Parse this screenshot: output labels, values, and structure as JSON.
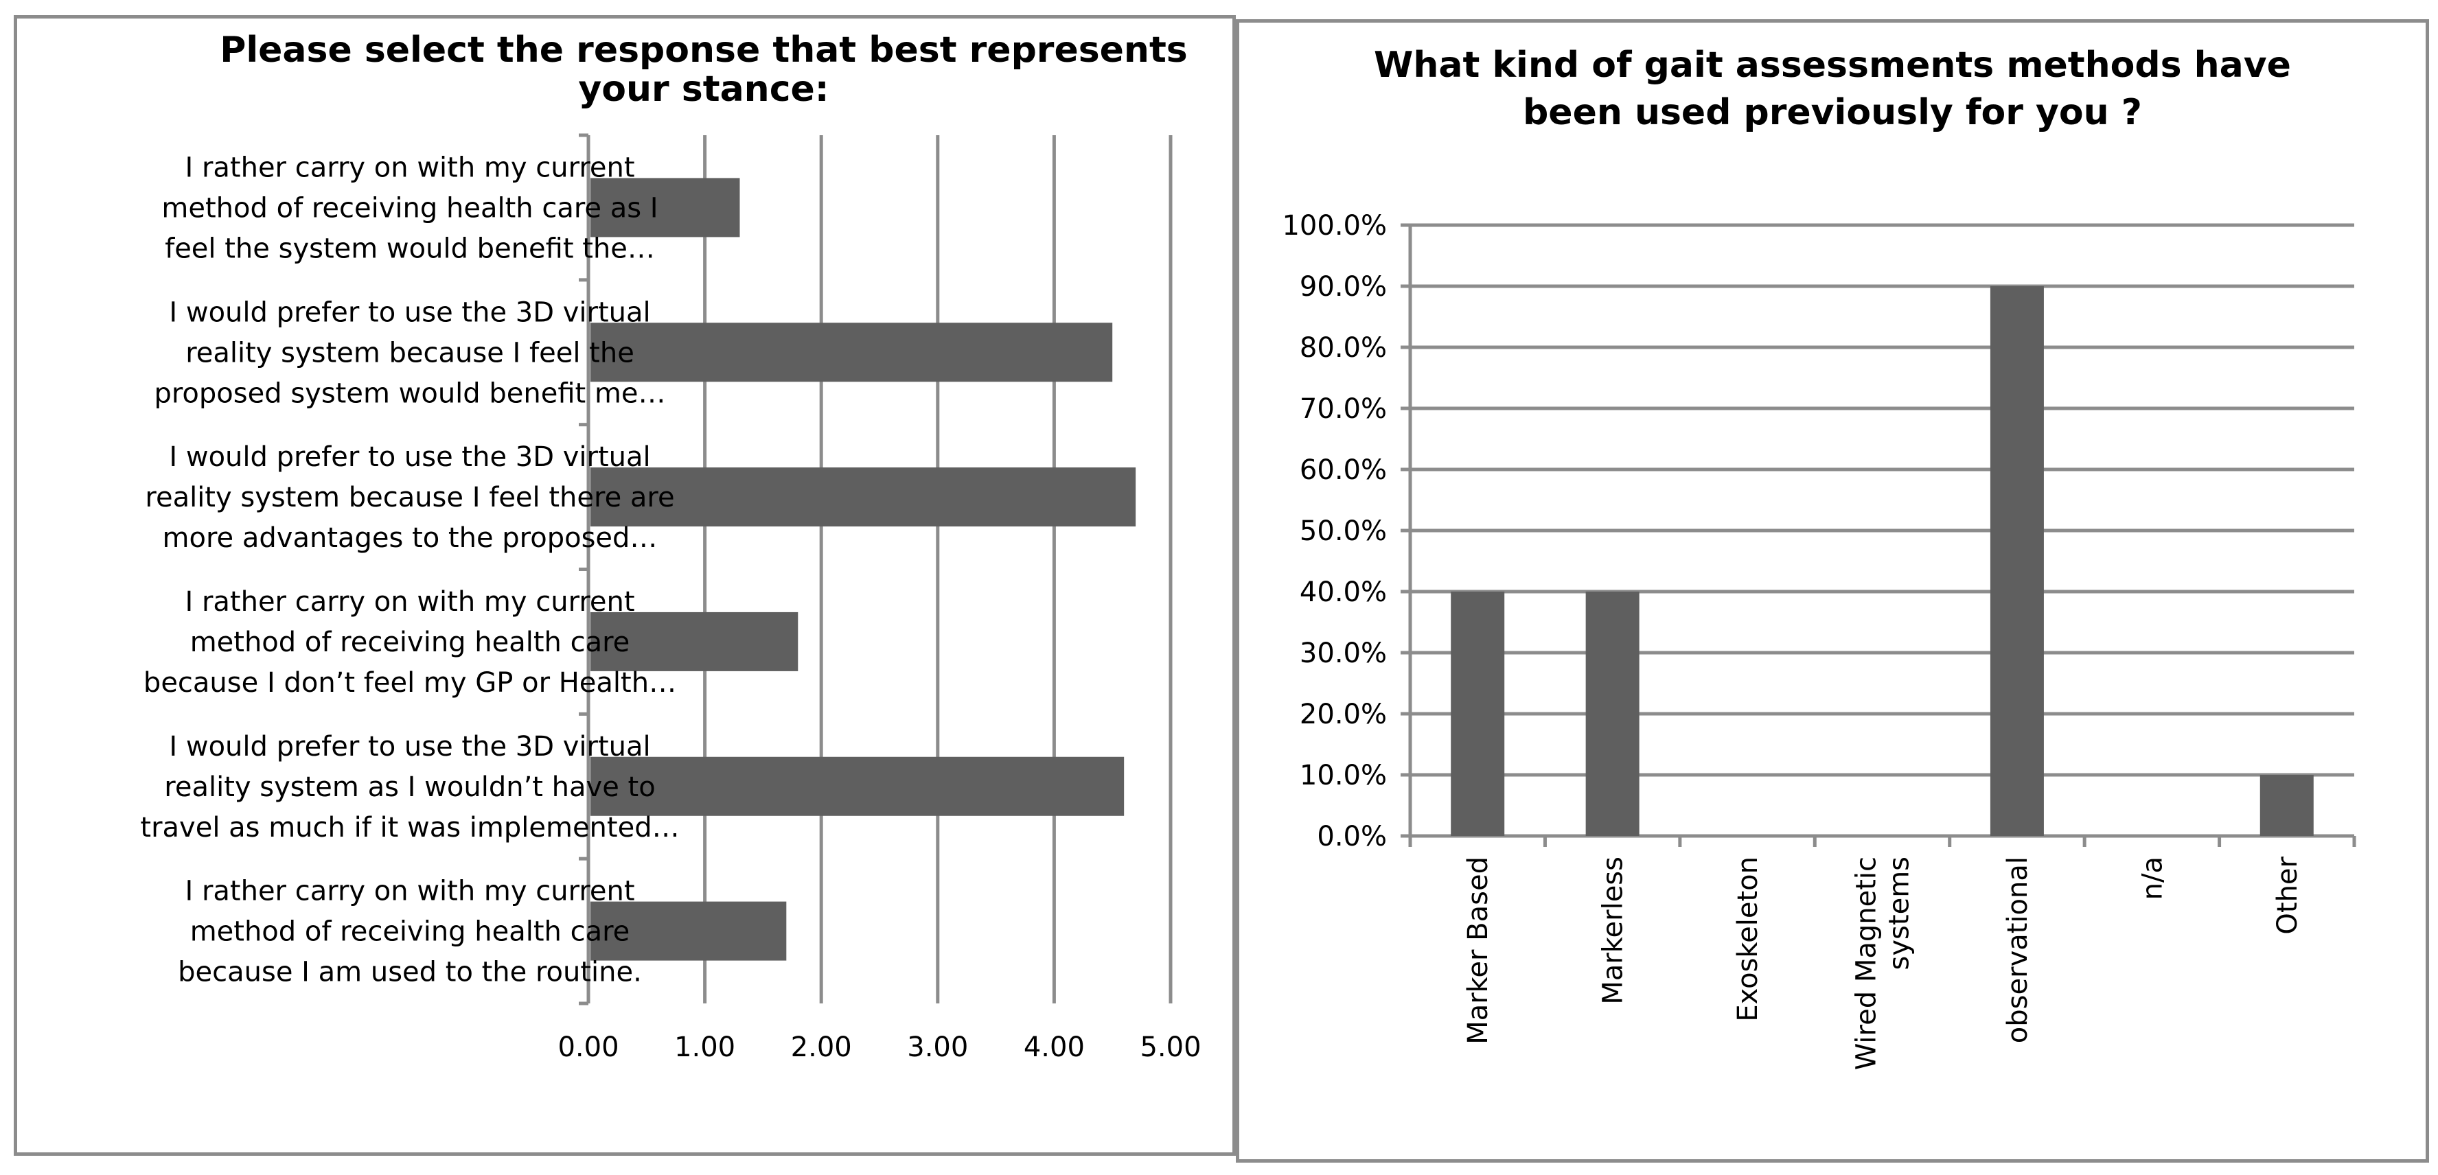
{
  "chart_data": [
    {
      "type": "bar",
      "orientation": "horizontal",
      "title": [
        "Please select the response that best represents",
        "your stance:"
      ],
      "categories": [
        [
          "I rather carry on with my current",
          "method of receiving health care as I",
          "feel the system would benefit the…"
        ],
        [
          "I would prefer to use the 3D virtual",
          "reality system because I feel the",
          "proposed system would benefit me…"
        ],
        [
          "I would prefer to use the 3D virtual",
          "reality system because I feel there are",
          "more advantages to the proposed…"
        ],
        [
          "I rather carry on with my current",
          "method of receiving health care",
          "because I don’t feel my GP or Health…"
        ],
        [
          "I would prefer to use the 3D virtual",
          "reality system as I wouldn’t have to",
          "travel as much if it was implemented…"
        ],
        [
          "I rather carry on with my current",
          "method of receiving health care",
          "because I am used to the routine."
        ]
      ],
      "values": [
        1.3,
        4.5,
        4.7,
        1.8,
        4.6,
        1.7
      ],
      "xlim": [
        0,
        5
      ],
      "xticks": [
        "0.00",
        "1.00",
        "2.00",
        "3.00",
        "4.00",
        "5.00"
      ],
      "grid": "vertical",
      "bar_color": "#5f5f5f",
      "grid_color": "#8c8c8c"
    },
    {
      "type": "bar",
      "orientation": "vertical",
      "title": [
        "What kind of gait assessments methods have",
        "been used previously for you ?"
      ],
      "categories": [
        [
          "Marker Based"
        ],
        [
          "Markerless"
        ],
        [
          "Exoskeleton"
        ],
        [
          "Wired Magnetic",
          "systems"
        ],
        [
          "observational"
        ],
        [
          "n/a"
        ],
        [
          "Other"
        ]
      ],
      "values": [
        40,
        40,
        0,
        0,
        90,
        0,
        10
      ],
      "ylim": [
        0,
        100
      ],
      "yticks": [
        "0.0%",
        "10.0%",
        "20.0%",
        "30.0%",
        "40.0%",
        "50.0%",
        "60.0%",
        "70.0%",
        "80.0%",
        "90.0%",
        "100.0%"
      ],
      "grid": "horizontal",
      "bar_color": "#5f5f5f",
      "grid_color": "#8c8c8c"
    }
  ]
}
